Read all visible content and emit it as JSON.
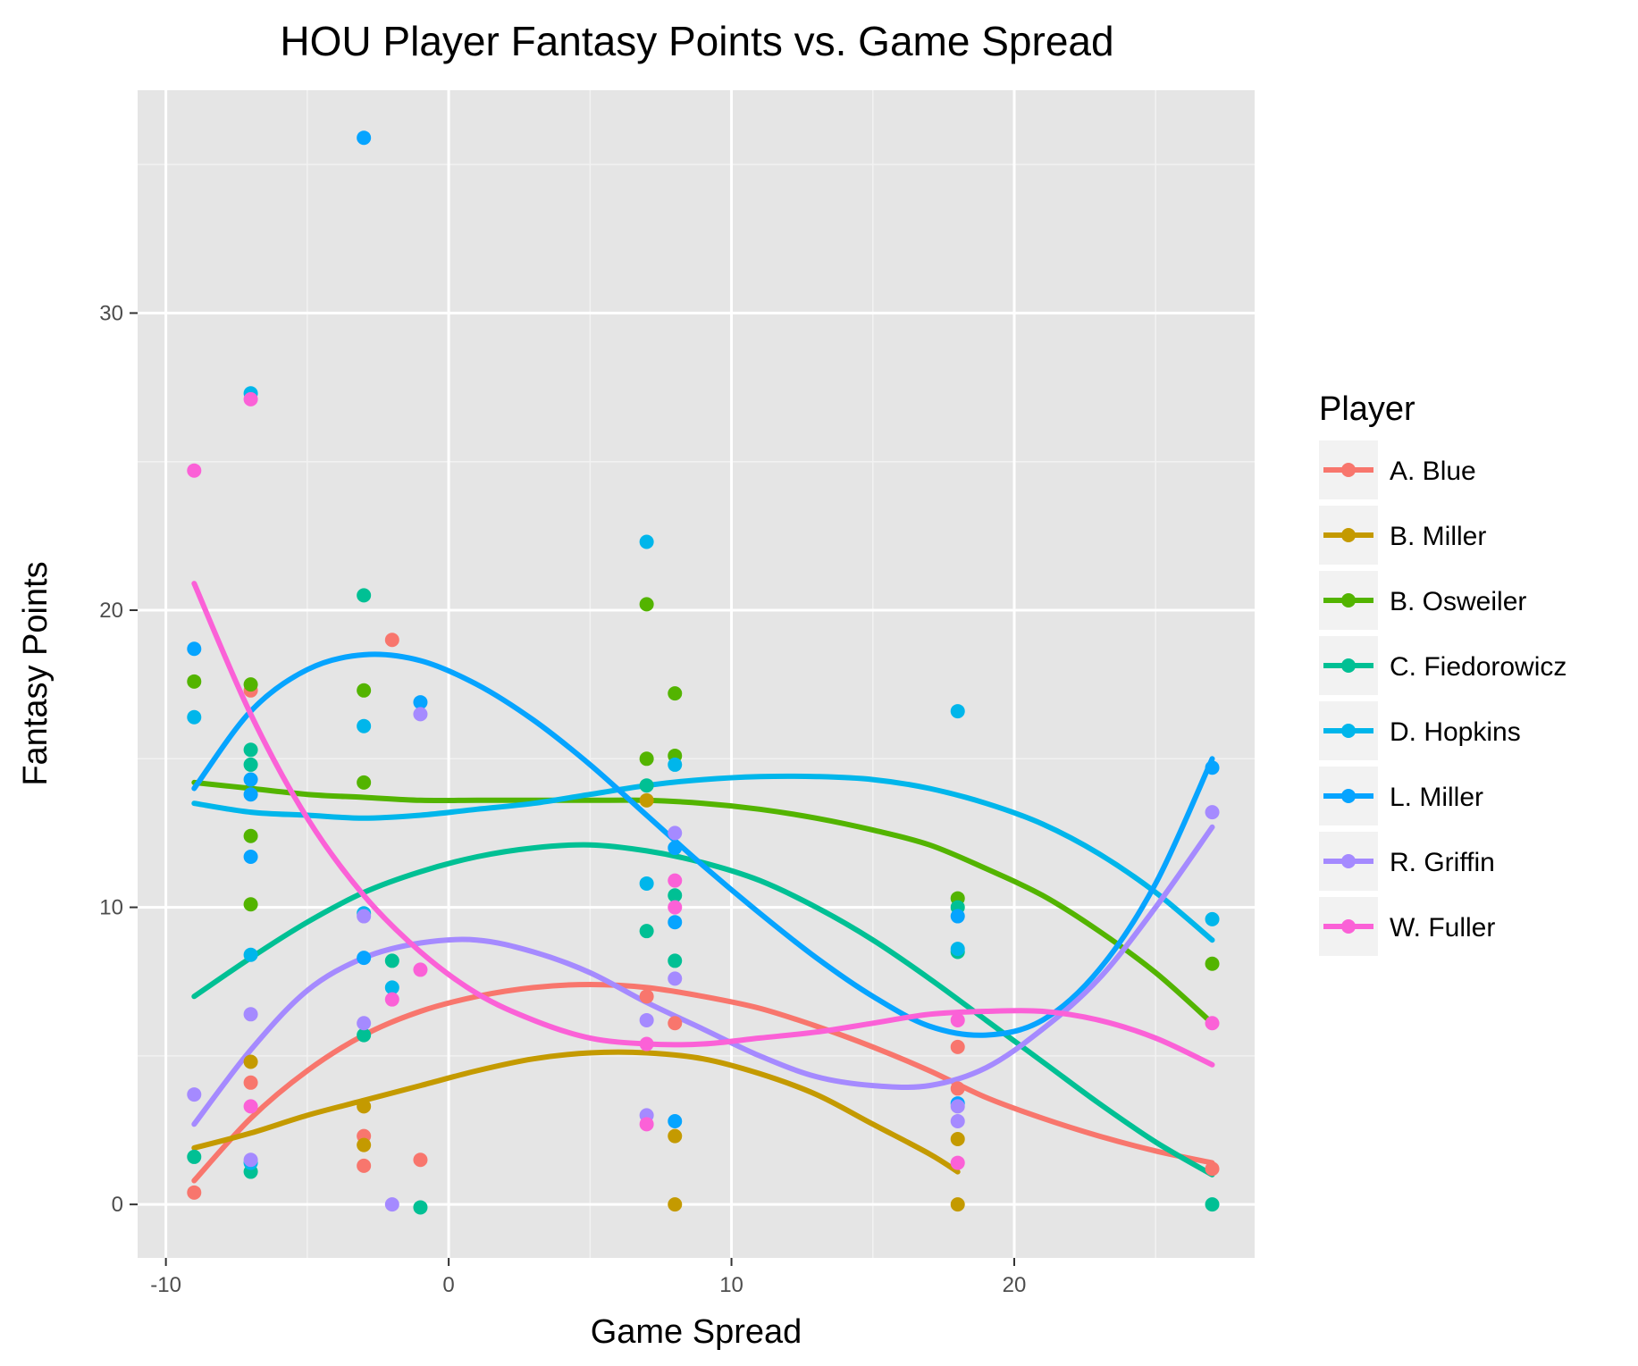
{
  "chart_data": {
    "type": "scatter",
    "title": "HOU Player Fantasy Points vs. Game Spread",
    "xlabel": "Game Spread",
    "ylabel": "Fantasy Points",
    "xlim": [
      -11,
      28.5
    ],
    "ylim": [
      -1.8,
      37.5
    ],
    "x_ticks": [
      -10,
      0,
      10,
      20
    ],
    "y_ticks": [
      0,
      10,
      20,
      30
    ],
    "grid": true,
    "panel_background": "#e5e5e5",
    "legend": {
      "title": "Player",
      "position": "right"
    },
    "trend": "smooth",
    "series": [
      {
        "name": "A. Blue",
        "color": "#f8766d",
        "points": [
          [
            -9,
            0.4
          ],
          [
            -7,
            4.1
          ],
          [
            -7,
            17.3
          ],
          [
            -3,
            1.3
          ],
          [
            -3,
            2.3
          ],
          [
            -2,
            19.0
          ],
          [
            -1,
            1.5
          ],
          [
            7,
            7.0
          ],
          [
            8,
            6.1
          ],
          [
            18,
            5.3
          ],
          [
            18,
            3.9
          ],
          [
            27,
            1.2
          ]
        ],
        "trend": [
          [
            -9,
            0.8
          ],
          [
            -7,
            2.9
          ],
          [
            -5,
            4.5
          ],
          [
            -3,
            5.7
          ],
          [
            -1,
            6.5
          ],
          [
            1,
            7.0
          ],
          [
            3,
            7.3
          ],
          [
            5,
            7.4
          ],
          [
            7,
            7.3
          ],
          [
            9,
            7.0
          ],
          [
            11,
            6.6
          ],
          [
            13,
            6.0
          ],
          [
            15,
            5.3
          ],
          [
            17,
            4.5
          ],
          [
            19,
            3.6
          ],
          [
            21,
            2.9
          ],
          [
            23,
            2.3
          ],
          [
            25,
            1.8
          ],
          [
            27,
            1.4
          ]
        ]
      },
      {
        "name": "B. Miller",
        "color": "#c49a00",
        "points": [
          [
            -7,
            4.8
          ],
          [
            -3,
            2.0
          ],
          [
            -3,
            3.3
          ],
          [
            7,
            13.6
          ],
          [
            8,
            2.3
          ],
          [
            8,
            0.0
          ],
          [
            18,
            2.2
          ],
          [
            18,
            0.0
          ]
        ],
        "trend": [
          [
            -9,
            1.9
          ],
          [
            -7,
            2.4
          ],
          [
            -5,
            3.0
          ],
          [
            -3,
            3.5
          ],
          [
            -1,
            4.0
          ],
          [
            1,
            4.5
          ],
          [
            3,
            4.9
          ],
          [
            5,
            5.1
          ],
          [
            7,
            5.1
          ],
          [
            9,
            4.9
          ],
          [
            11,
            4.4
          ],
          [
            13,
            3.7
          ],
          [
            15,
            2.7
          ],
          [
            17,
            1.7
          ],
          [
            18,
            1.1
          ]
        ]
      },
      {
        "name": "B. Osweiler",
        "color": "#53b400",
        "points": [
          [
            -9,
            17.6
          ],
          [
            -7,
            17.5
          ],
          [
            -7,
            12.4
          ],
          [
            -7,
            10.1
          ],
          [
            -3,
            17.3
          ],
          [
            -3,
            14.2
          ],
          [
            7,
            20.2
          ],
          [
            7,
            15.0
          ],
          [
            8,
            17.2
          ],
          [
            8,
            15.1
          ],
          [
            18,
            10.3
          ],
          [
            27,
            8.1
          ]
        ],
        "trend": [
          [
            -9,
            14.2
          ],
          [
            -7,
            14.0
          ],
          [
            -5,
            13.8
          ],
          [
            -3,
            13.7
          ],
          [
            -1,
            13.6
          ],
          [
            1,
            13.6
          ],
          [
            3,
            13.6
          ],
          [
            5,
            13.6
          ],
          [
            7,
            13.6
          ],
          [
            9,
            13.5
          ],
          [
            11,
            13.3
          ],
          [
            13,
            13.0
          ],
          [
            15,
            12.6
          ],
          [
            17,
            12.1
          ],
          [
            19,
            11.3
          ],
          [
            21,
            10.4
          ],
          [
            23,
            9.2
          ],
          [
            25,
            7.8
          ],
          [
            27,
            6.1
          ]
        ]
      },
      {
        "name": "C. Fiedorowicz",
        "color": "#00c094",
        "points": [
          [
            -9,
            1.6
          ],
          [
            -7,
            15.3
          ],
          [
            -7,
            14.8
          ],
          [
            -7,
            1.1
          ],
          [
            -3,
            20.5
          ],
          [
            -3,
            5.7
          ],
          [
            -2,
            8.2
          ],
          [
            -1,
            -0.1
          ],
          [
            7,
            9.2
          ],
          [
            7,
            14.1
          ],
          [
            8,
            10.4
          ],
          [
            8,
            8.2
          ],
          [
            18,
            8.5
          ],
          [
            18,
            10.0
          ],
          [
            27,
            0.0
          ]
        ],
        "trend": [
          [
            -9,
            7.0
          ],
          [
            -7,
            8.3
          ],
          [
            -5,
            9.5
          ],
          [
            -3,
            10.5
          ],
          [
            -1,
            11.2
          ],
          [
            1,
            11.7
          ],
          [
            3,
            12.0
          ],
          [
            5,
            12.1
          ],
          [
            7,
            11.9
          ],
          [
            9,
            11.5
          ],
          [
            11,
            10.9
          ],
          [
            13,
            10.0
          ],
          [
            15,
            8.9
          ],
          [
            17,
            7.6
          ],
          [
            19,
            6.2
          ],
          [
            21,
            4.8
          ],
          [
            23,
            3.4
          ],
          [
            25,
            2.1
          ],
          [
            27,
            1.0
          ]
        ]
      },
      {
        "name": "D. Hopkins",
        "color": "#00b6eb",
        "points": [
          [
            -9,
            16.4
          ],
          [
            -7,
            27.3
          ],
          [
            -7,
            8.4
          ],
          [
            -7,
            1.4
          ],
          [
            -3,
            16.1
          ],
          [
            -3,
            9.8
          ],
          [
            -2,
            7.3
          ],
          [
            7,
            22.3
          ],
          [
            7,
            10.8
          ],
          [
            8,
            14.8
          ],
          [
            18,
            16.6
          ],
          [
            18,
            8.6
          ],
          [
            27,
            9.6
          ]
        ],
        "trend": [
          [
            -9,
            13.5
          ],
          [
            -7,
            13.2
          ],
          [
            -5,
            13.1
          ],
          [
            -3,
            13.0
          ],
          [
            -1,
            13.1
          ],
          [
            1,
            13.3
          ],
          [
            3,
            13.5
          ],
          [
            5,
            13.8
          ],
          [
            7,
            14.1
          ],
          [
            9,
            14.3
          ],
          [
            11,
            14.4
          ],
          [
            13,
            14.4
          ],
          [
            15,
            14.3
          ],
          [
            17,
            14.0
          ],
          [
            19,
            13.5
          ],
          [
            21,
            12.8
          ],
          [
            23,
            11.8
          ],
          [
            25,
            10.5
          ],
          [
            27,
            8.9
          ]
        ]
      },
      {
        "name": "L. Miller",
        "color": "#06a4ff",
        "points": [
          [
            -9,
            18.7
          ],
          [
            -7,
            14.3
          ],
          [
            -7,
            13.8
          ],
          [
            -7,
            11.7
          ],
          [
            -3,
            35.9
          ],
          [
            -3,
            8.3
          ],
          [
            -1,
            16.9
          ],
          [
            8,
            12.0
          ],
          [
            8,
            9.5
          ],
          [
            8,
            2.8
          ],
          [
            18,
            9.7
          ],
          [
            18,
            3.4
          ],
          [
            27,
            14.7
          ]
        ],
        "trend": [
          [
            -9,
            14.0
          ],
          [
            -7,
            16.6
          ],
          [
            -5,
            18.0
          ],
          [
            -3,
            18.5
          ],
          [
            -1,
            18.3
          ],
          [
            1,
            17.5
          ],
          [
            3,
            16.3
          ],
          [
            5,
            14.8
          ],
          [
            7,
            13.1
          ],
          [
            9,
            11.4
          ],
          [
            11,
            9.8
          ],
          [
            13,
            8.3
          ],
          [
            15,
            7.0
          ],
          [
            17,
            6.0
          ],
          [
            19,
            5.7
          ],
          [
            21,
            6.2
          ],
          [
            23,
            7.9
          ],
          [
            25,
            10.8
          ],
          [
            27,
            15.0
          ]
        ]
      },
      {
        "name": "R. Griffin",
        "color": "#a58aff",
        "points": [
          [
            -9,
            3.7
          ],
          [
            -7,
            6.4
          ],
          [
            -7,
            1.5
          ],
          [
            -3,
            9.7
          ],
          [
            -3,
            6.1
          ],
          [
            -2,
            0.0
          ],
          [
            -1,
            16.5
          ],
          [
            7,
            6.2
          ],
          [
            7,
            3.0
          ],
          [
            8,
            7.6
          ],
          [
            8,
            12.5
          ],
          [
            18,
            3.3
          ],
          [
            18,
            2.8
          ],
          [
            27,
            13.2
          ]
        ],
        "trend": [
          [
            -9,
            2.7
          ],
          [
            -7,
            5.2
          ],
          [
            -5,
            7.2
          ],
          [
            -3,
            8.3
          ],
          [
            -1,
            8.8
          ],
          [
            1,
            8.9
          ],
          [
            3,
            8.5
          ],
          [
            5,
            7.8
          ],
          [
            7,
            6.8
          ],
          [
            9,
            5.9
          ],
          [
            11,
            5.0
          ],
          [
            13,
            4.3
          ],
          [
            15,
            4.0
          ],
          [
            17,
            4.0
          ],
          [
            19,
            4.6
          ],
          [
            21,
            5.9
          ],
          [
            23,
            7.6
          ],
          [
            25,
            10.0
          ],
          [
            27,
            12.7
          ]
        ]
      },
      {
        "name": "W. Fuller",
        "color": "#fb61d7",
        "points": [
          [
            -9,
            24.7
          ],
          [
            -7,
            27.1
          ],
          [
            -7,
            3.3
          ],
          [
            -2,
            6.9
          ],
          [
            -1,
            7.9
          ],
          [
            7,
            2.7
          ],
          [
            7,
            5.4
          ],
          [
            8,
            10.9
          ],
          [
            8,
            10.0
          ],
          [
            18,
            1.4
          ],
          [
            18,
            6.2
          ],
          [
            27,
            6.1
          ]
        ],
        "trend": [
          [
            -9,
            20.9
          ],
          [
            -7,
            16.5
          ],
          [
            -5,
            13.0
          ],
          [
            -3,
            10.4
          ],
          [
            -1,
            8.5
          ],
          [
            1,
            7.1
          ],
          [
            3,
            6.2
          ],
          [
            5,
            5.6
          ],
          [
            7,
            5.4
          ],
          [
            9,
            5.4
          ],
          [
            11,
            5.6
          ],
          [
            13,
            5.8
          ],
          [
            15,
            6.1
          ],
          [
            17,
            6.4
          ],
          [
            19,
            6.5
          ],
          [
            21,
            6.5
          ],
          [
            23,
            6.2
          ],
          [
            25,
            5.6
          ],
          [
            27,
            4.7
          ]
        ]
      }
    ]
  }
}
